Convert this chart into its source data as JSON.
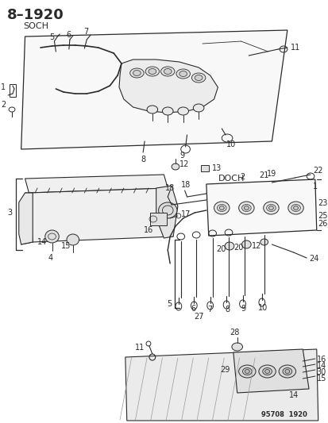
{
  "title": "8–1920",
  "subtitle_soch": "SOCH",
  "subtitle_doch": "DOCH",
  "watermark": "95708  1920",
  "bg_color": "#ffffff",
  "line_color": "#2a2a2a",
  "text_color": "#2a2a2a",
  "title_fontsize": 13,
  "label_fontsize": 7,
  "small_fontsize": 6,
  "fig_width": 4.14,
  "fig_height": 5.33,
  "dpi": 100
}
